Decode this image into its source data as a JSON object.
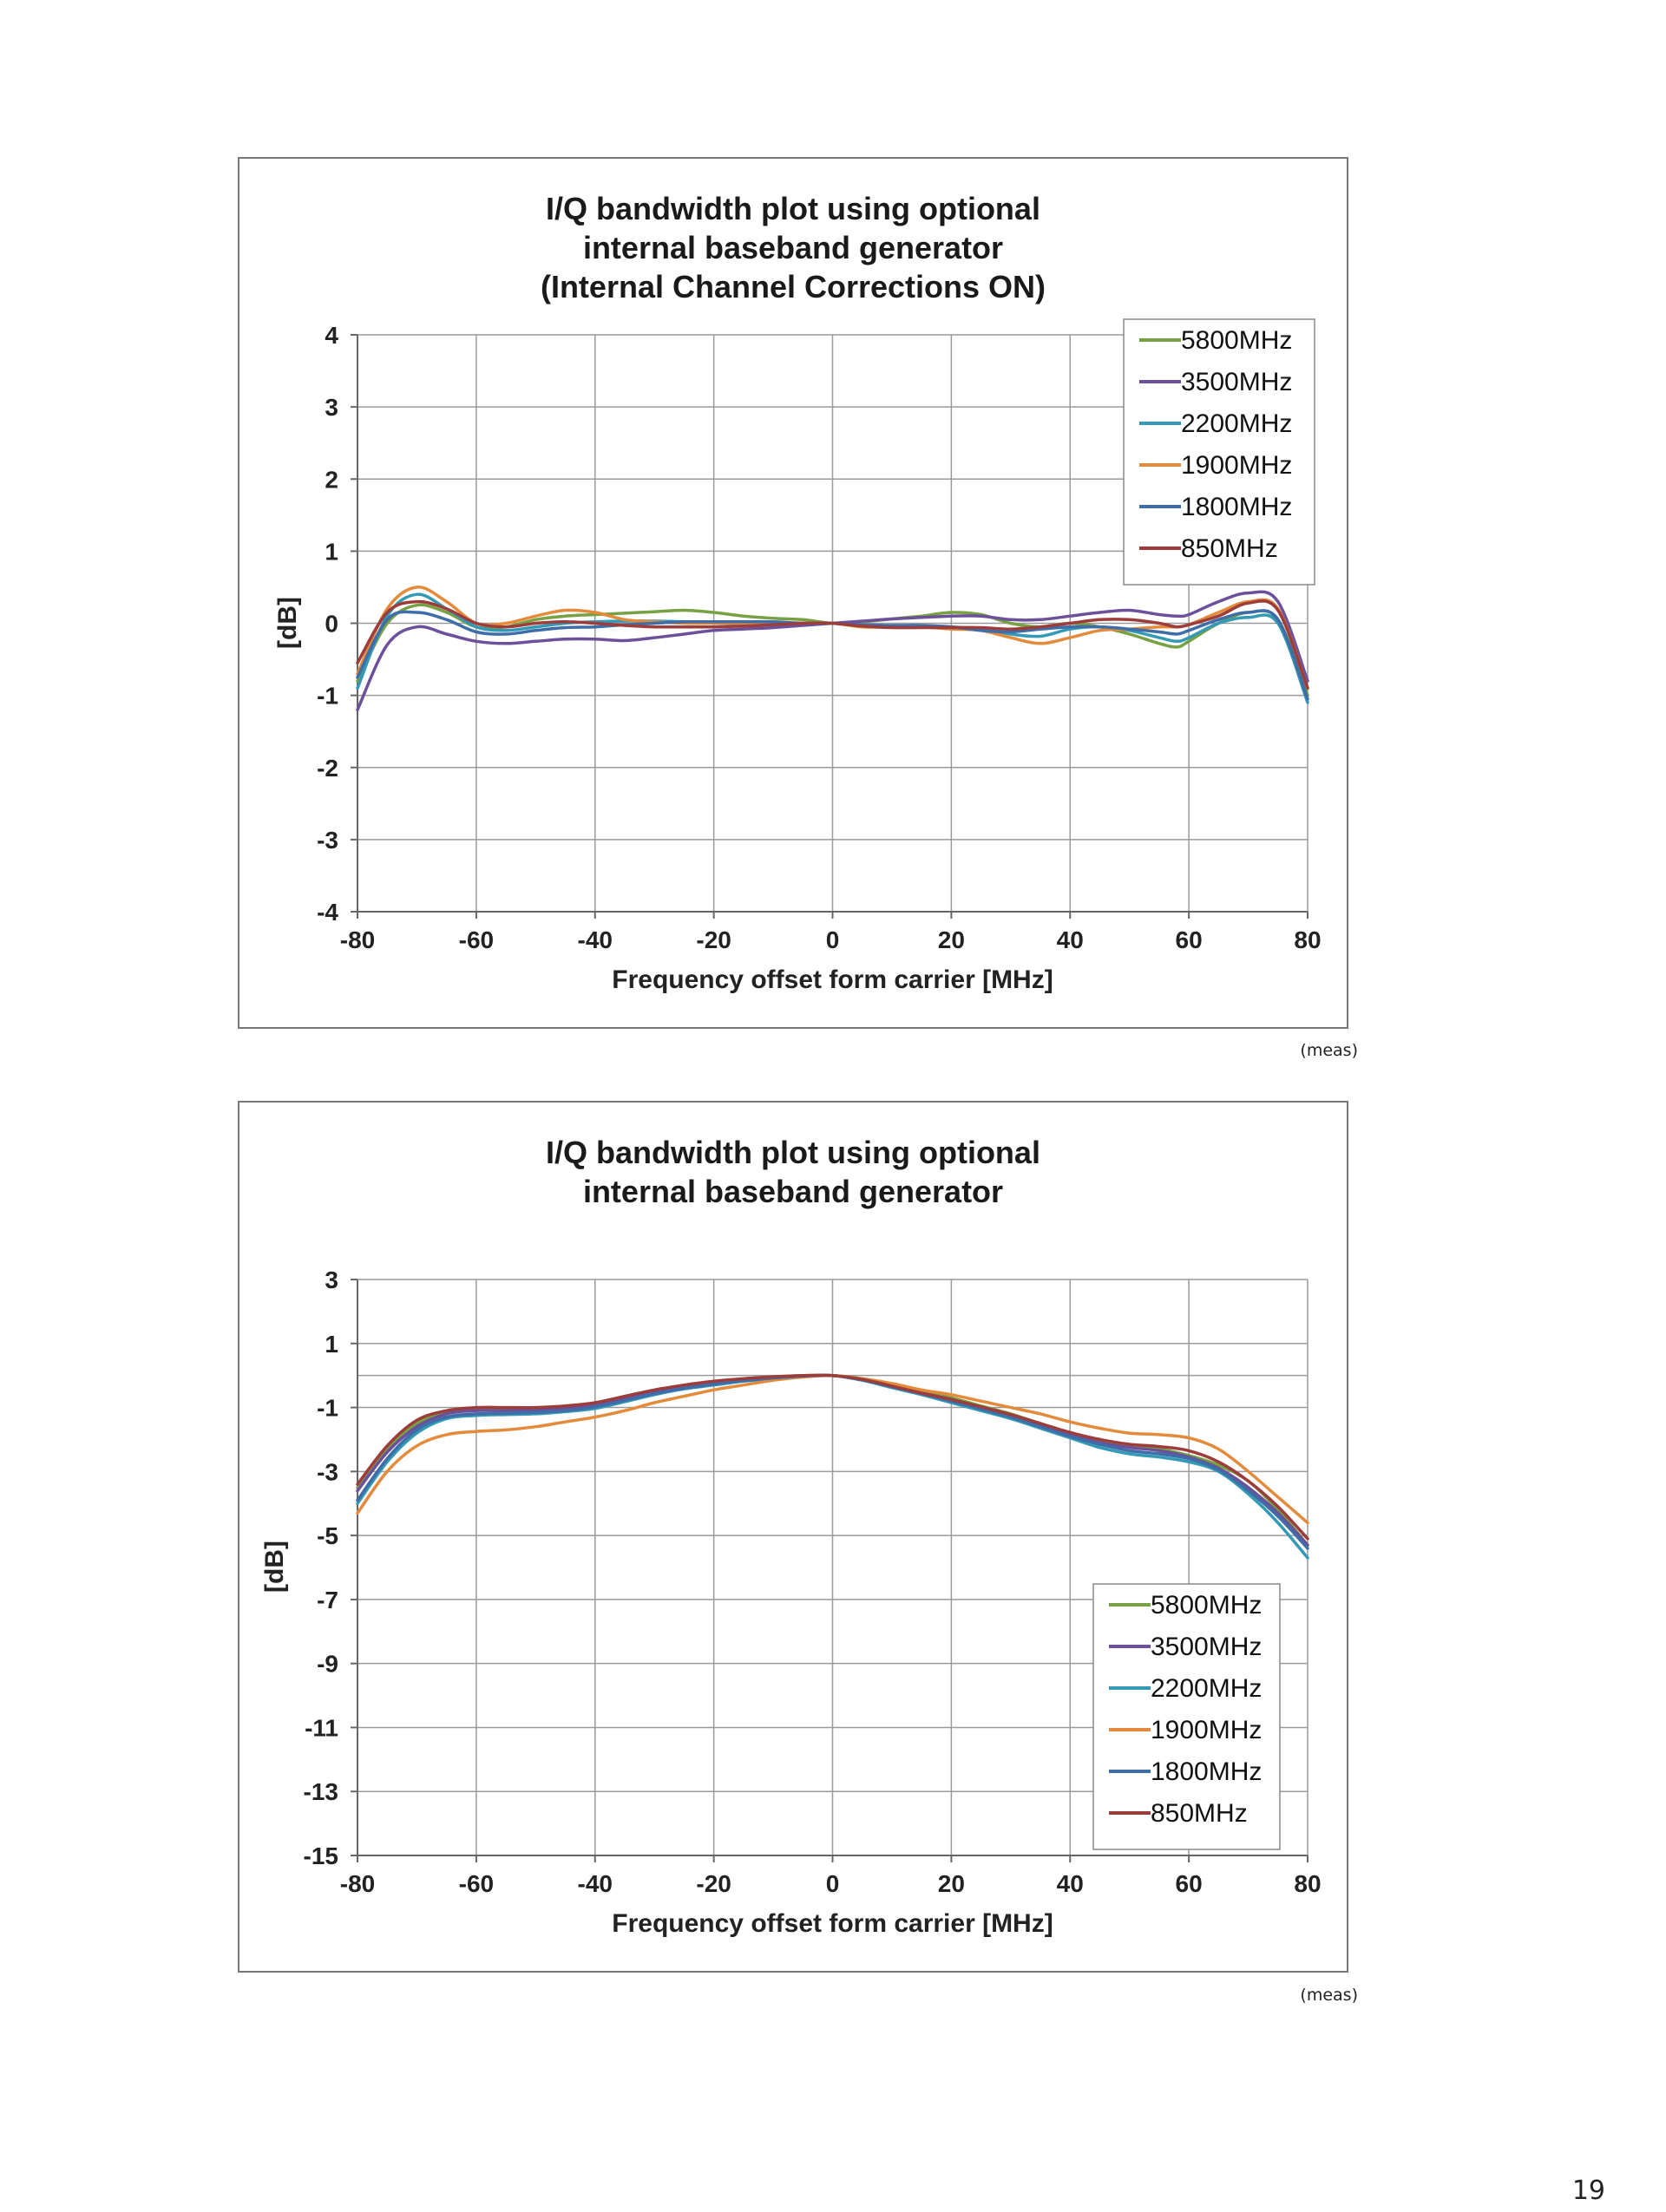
{
  "colors": {
    "5800MHz": "#77a142",
    "3500MHz": "#6d509a",
    "2200MHz": "#3399b5",
    "1900MHz": "#e48a3b",
    "1800MHz": "#3e6da8",
    "850MHz": "#9c3d3b"
  },
  "chart_data": [
    {
      "type": "line",
      "title": [
        "I/Q bandwidth plot using optional",
        "internal baseband generator",
        "(Internal Channel Corrections ON)"
      ],
      "xlabel": "Frequency offset form carrier [MHz]",
      "ylabel": "[dB]",
      "xlim": [
        -80,
        80
      ],
      "ylim": [
        -4,
        4
      ],
      "xticks": [
        -80,
        -60,
        -40,
        -20,
        0,
        20,
        40,
        60,
        80
      ],
      "yticks": [
        -4,
        -3,
        -2,
        -1,
        0,
        1,
        2,
        3,
        4
      ],
      "grid": true,
      "legend": "top-right",
      "x": [
        -80,
        -75,
        -70,
        -65,
        -60,
        -55,
        -50,
        -45,
        -40,
        -35,
        -30,
        -25,
        -20,
        -15,
        -10,
        -5,
        0,
        5,
        10,
        15,
        20,
        25,
        30,
        35,
        40,
        45,
        50,
        55,
        58,
        60,
        65,
        70,
        75,
        80
      ],
      "series": [
        {
          "name": "5800MHz",
          "values": [
            -0.8,
            0.0,
            0.25,
            0.15,
            -0.05,
            -0.05,
            0.05,
            0.1,
            0.12,
            0.14,
            0.16,
            0.18,
            0.15,
            0.1,
            0.07,
            0.05,
            0.0,
            0.02,
            0.06,
            0.1,
            0.15,
            0.12,
            0.0,
            -0.05,
            0.0,
            -0.05,
            -0.15,
            -0.28,
            -0.33,
            -0.25,
            0.0,
            0.15,
            0.05,
            -1.0
          ]
        },
        {
          "name": "3500MHz",
          "values": [
            -1.2,
            -0.3,
            -0.05,
            -0.15,
            -0.25,
            -0.28,
            -0.25,
            -0.22,
            -0.22,
            -0.24,
            -0.2,
            -0.15,
            -0.1,
            -0.08,
            -0.06,
            -0.03,
            0.0,
            0.03,
            0.06,
            0.08,
            0.1,
            0.1,
            0.05,
            0.05,
            0.1,
            0.15,
            0.18,
            0.12,
            0.1,
            0.12,
            0.3,
            0.42,
            0.3,
            -0.8
          ]
        },
        {
          "name": "2200MHz",
          "values": [
            -0.9,
            0.1,
            0.4,
            0.2,
            -0.05,
            -0.1,
            -0.05,
            0.0,
            0.02,
            0.03,
            0.03,
            0.02,
            0.0,
            0.0,
            0.0,
            0.0,
            0.0,
            -0.03,
            -0.05,
            -0.04,
            -0.05,
            -0.08,
            -0.15,
            -0.18,
            -0.08,
            -0.05,
            -0.1,
            -0.2,
            -0.25,
            -0.2,
            0.0,
            0.08,
            0.0,
            -1.1
          ]
        },
        {
          "name": "1900MHz",
          "values": [
            -0.7,
            0.2,
            0.5,
            0.3,
            0.0,
            0.0,
            0.1,
            0.18,
            0.15,
            0.05,
            0.02,
            0.0,
            0.0,
            0.0,
            0.0,
            0.0,
            0.0,
            -0.05,
            -0.05,
            -0.05,
            -0.08,
            -0.1,
            -0.2,
            -0.28,
            -0.2,
            -0.1,
            -0.08,
            -0.05,
            -0.05,
            -0.02,
            0.15,
            0.3,
            0.2,
            -0.9
          ]
        },
        {
          "name": "1800MHz",
          "values": [
            -0.75,
            0.05,
            0.15,
            0.05,
            -0.12,
            -0.15,
            -0.1,
            -0.06,
            -0.05,
            -0.02,
            0.0,
            0.02,
            0.02,
            0.02,
            0.02,
            0.0,
            0.0,
            -0.02,
            -0.03,
            -0.03,
            -0.05,
            -0.1,
            -0.12,
            -0.08,
            -0.05,
            -0.05,
            -0.08,
            -0.12,
            -0.15,
            -0.1,
            0.05,
            0.15,
            0.05,
            -1.05
          ]
        },
        {
          "name": "850MHz",
          "values": [
            -0.55,
            0.15,
            0.3,
            0.2,
            0.0,
            -0.05,
            0.0,
            0.02,
            0.0,
            -0.03,
            -0.05,
            -0.05,
            -0.05,
            -0.04,
            -0.02,
            0.0,
            0.0,
            -0.04,
            -0.06,
            -0.06,
            -0.06,
            -0.06,
            -0.08,
            -0.05,
            0.0,
            0.05,
            0.05,
            0.0,
            -0.05,
            -0.02,
            0.1,
            0.28,
            0.18,
            -0.9
          ]
        }
      ]
    },
    {
      "type": "line",
      "title": [
        "I/Q bandwidth plot using optional",
        "internal baseband generator"
      ],
      "xlabel": "Frequency offset form carrier [MHz]",
      "ylabel": "[dB]",
      "xlim": [
        -80,
        80
      ],
      "ylim": [
        -15,
        3
      ],
      "xticks": [
        -80,
        -60,
        -40,
        -20,
        0,
        20,
        40,
        60,
        80
      ],
      "yticks": [
        -15,
        -13,
        -11,
        -9,
        -7,
        -5,
        -3,
        -1,
        1,
        3
      ],
      "extra_gridlines": [
        0
      ],
      "grid": true,
      "legend": "bottom-right",
      "x": [
        -80,
        -75,
        -70,
        -65,
        -60,
        -55,
        -50,
        -45,
        -40,
        -35,
        -30,
        -25,
        -20,
        -15,
        -10,
        -5,
        0,
        5,
        10,
        15,
        20,
        25,
        30,
        35,
        40,
        45,
        50,
        55,
        60,
        65,
        70,
        75,
        80
      ],
      "series": [
        {
          "name": "5800MHz",
          "values": [
            -3.5,
            -2.3,
            -1.5,
            -1.15,
            -1.05,
            -1.05,
            -1.05,
            -1.0,
            -0.9,
            -0.7,
            -0.5,
            -0.32,
            -0.2,
            -0.1,
            -0.05,
            0.0,
            0.0,
            -0.1,
            -0.3,
            -0.5,
            -0.7,
            -0.95,
            -1.2,
            -1.5,
            -1.8,
            -2.05,
            -2.2,
            -2.3,
            -2.5,
            -2.8,
            -3.3,
            -4.2,
            -5.3
          ]
        },
        {
          "name": "3500MHz",
          "values": [
            -3.6,
            -2.4,
            -1.6,
            -1.2,
            -1.1,
            -1.1,
            -1.08,
            -1.03,
            -0.93,
            -0.72,
            -0.52,
            -0.35,
            -0.22,
            -0.12,
            -0.06,
            -0.01,
            0.0,
            -0.12,
            -0.32,
            -0.55,
            -0.75,
            -1.0,
            -1.25,
            -1.55,
            -1.85,
            -2.1,
            -2.25,
            -2.35,
            -2.55,
            -2.9,
            -3.5,
            -4.3,
            -5.3
          ]
        },
        {
          "name": "2200MHz",
          "values": [
            -4.0,
            -2.7,
            -1.8,
            -1.35,
            -1.25,
            -1.22,
            -1.2,
            -1.13,
            -1.03,
            -0.82,
            -0.6,
            -0.42,
            -0.3,
            -0.18,
            -0.1,
            -0.03,
            0.0,
            -0.15,
            -0.38,
            -0.6,
            -0.85,
            -1.1,
            -1.35,
            -1.65,
            -1.95,
            -2.25,
            -2.45,
            -2.55,
            -2.7,
            -3.0,
            -3.7,
            -4.6,
            -5.7
          ]
        },
        {
          "name": "1900MHz",
          "values": [
            -4.3,
            -3.0,
            -2.2,
            -1.85,
            -1.75,
            -1.7,
            -1.6,
            -1.45,
            -1.3,
            -1.1,
            -0.85,
            -0.65,
            -0.45,
            -0.3,
            -0.15,
            -0.05,
            0.0,
            -0.1,
            -0.25,
            -0.45,
            -0.6,
            -0.8,
            -1.0,
            -1.2,
            -1.45,
            -1.65,
            -1.8,
            -1.85,
            -1.95,
            -2.3,
            -3.0,
            -3.8,
            -4.6
          ]
        },
        {
          "name": "1800MHz",
          "values": [
            -3.9,
            -2.6,
            -1.7,
            -1.3,
            -1.2,
            -1.18,
            -1.15,
            -1.1,
            -0.98,
            -0.78,
            -0.57,
            -0.4,
            -0.27,
            -0.16,
            -0.08,
            -0.02,
            0.0,
            -0.14,
            -0.35,
            -0.57,
            -0.8,
            -1.05,
            -1.3,
            -1.6,
            -1.9,
            -2.15,
            -2.35,
            -2.45,
            -2.6,
            -2.95,
            -3.6,
            -4.4,
            -5.4
          ]
        },
        {
          "name": "850MHz",
          "values": [
            -3.4,
            -2.2,
            -1.4,
            -1.1,
            -1.0,
            -1.0,
            -1.0,
            -0.95,
            -0.85,
            -0.65,
            -0.45,
            -0.3,
            -0.18,
            -0.1,
            -0.04,
            0.0,
            0.0,
            -0.12,
            -0.33,
            -0.55,
            -0.75,
            -0.98,
            -1.22,
            -1.5,
            -1.78,
            -2.0,
            -2.15,
            -2.22,
            -2.35,
            -2.7,
            -3.3,
            -4.1,
            -5.1
          ]
        }
      ]
    }
  ],
  "captions": {
    "chart1": "(meas)",
    "chart2": "(meas)"
  },
  "page": {
    "number": "19"
  }
}
